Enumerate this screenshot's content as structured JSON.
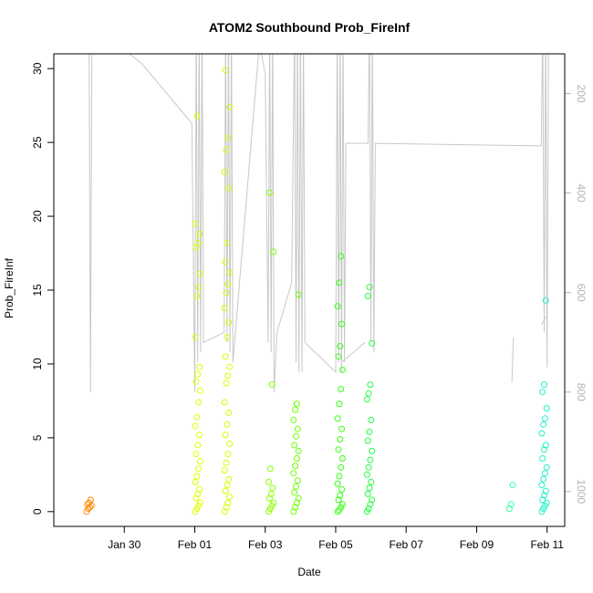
{
  "chart_data": {
    "type": "scatter",
    "title": "ATOM2 Southbound Prob_FireInf",
    "xlabel": "Date",
    "ylabel": "Prob_FireInf",
    "xlim": [
      "2024-01-28T00:00",
      "2024-02-11T12:00"
    ],
    "ylim": [
      -1,
      31
    ],
    "x_ticks": [
      {
        "date": "2024-01-30",
        "label": "Jan 30"
      },
      {
        "date": "2024-02-01",
        "label": "Feb 01"
      },
      {
        "date": "2024-02-03",
        "label": "Feb 03"
      },
      {
        "date": "2024-02-05",
        "label": "Feb 05"
      },
      {
        "date": "2024-02-07",
        "label": "Feb 07"
      },
      {
        "date": "2024-02-09",
        "label": "Feb 09"
      },
      {
        "date": "2024-02-11",
        "label": "Feb 11"
      }
    ],
    "y_ticks": [
      0,
      5,
      10,
      15,
      20,
      25,
      30
    ],
    "right_axis": {
      "ylim": [
        1070,
        120
      ],
      "ticks": [
        200,
        400,
        600,
        800,
        1000
      ],
      "color": "#b3b3b3"
    },
    "grid": false,
    "legend": "none",
    "point_series": [
      {
        "color": "#ff8c00",
        "x": "2024-01-29T00:00",
        "y": [
          0,
          0.2,
          0.3,
          0.4,
          0.5,
          0.6,
          0.8
        ]
      },
      {
        "color": "#e0ff00",
        "x": "2024-02-01T02:00",
        "y": [
          0,
          0.2,
          0.4,
          0.6,
          0.9,
          1.2,
          1.5,
          2.0,
          2.4,
          2.9,
          3.4,
          3.9,
          4.5,
          5.2,
          5.8,
          6.4,
          7.4,
          8.2,
          8.8,
          9.3,
          9.8,
          11.8,
          14.6,
          15.2,
          16.1,
          17.9,
          18.2,
          18.8,
          19.5,
          26.8
        ]
      },
      {
        "color": "#d4ff00",
        "x": "2024-02-01T22:00",
        "y": [
          0,
          0.3,
          0.6,
          1.0,
          1.4,
          1.8,
          2.2,
          2.8,
          3.3,
          3.9,
          4.6,
          5.2,
          5.9,
          6.7,
          7.4,
          8.7,
          9.2,
          9.8,
          10.5,
          11.8,
          12.8,
          13.8,
          14.8,
          15.4,
          16.2,
          16.9,
          18.2,
          21.9,
          23.0,
          24.5,
          25.3,
          27.4,
          29.9
        ]
      },
      {
        "color": "#8cff00",
        "x": "2024-02-03T04:00",
        "y": [
          0,
          0.2,
          0.4,
          0.6,
          0.9,
          1.2,
          1.6,
          2.0,
          2.9,
          8.6,
          17.6,
          21.6
        ]
      },
      {
        "color": "#6eff00",
        "x": "2024-02-03T21:00",
        "y": [
          0,
          0.3,
          0.6,
          0.9,
          1.3,
          1.7,
          2.1,
          2.6,
          3.1,
          3.6,
          4.1,
          4.5,
          5.1,
          5.6,
          6.2,
          6.9,
          7.3,
          14.7
        ]
      },
      {
        "color": "#33ff10",
        "x": "2024-02-05T03:00",
        "y": [
          0,
          0.1,
          0.3,
          0.5,
          0.8,
          1.1,
          1.5,
          1.9,
          2.4,
          3.0,
          3.6,
          4.2,
          4.9,
          5.6,
          6.3,
          7.3,
          8.3,
          9.6,
          10.5,
          11.2,
          12.7,
          13.9,
          15.5,
          17.3
        ]
      },
      {
        "color": "#20ff40",
        "x": "2024-02-05T23:00",
        "y": [
          0,
          0.2,
          0.5,
          0.8,
          1.2,
          1.6,
          2.0,
          2.5,
          3.0,
          3.5,
          4.1,
          4.8,
          5.4,
          6.2,
          7.6,
          8.0,
          8.6,
          11.4,
          14.6,
          15.2
        ]
      },
      {
        "color": "#30ffa0",
        "x": "2024-02-10T00:00",
        "y": [
          0.2,
          0.5,
          1.8
        ]
      },
      {
        "color": "#20f0c8",
        "x": "2024-02-10T22:00",
        "y": [
          0,
          0.2,
          0.4,
          0.6,
          0.8,
          1.1,
          1.4,
          1.8,
          2.2,
          2.6,
          3.0,
          3.6,
          4.2,
          4.5,
          5.3,
          5.9,
          6.3,
          7.0,
          8.1,
          8.6,
          14.3
        ]
      }
    ],
    "depth_line": {
      "color": "#c8c8c8",
      "axis": "right",
      "points": [
        [
          "2024-01-29T00:00",
          60
        ],
        [
          "2024-01-29T01:00",
          800
        ],
        [
          "2024-01-29T02:00",
          60
        ],
        [
          "2024-01-30T12:00",
          140
        ],
        [
          "2024-01-31T22:00",
          260
        ],
        [
          "2024-02-01T00:00",
          800
        ],
        [
          "2024-02-01T01:00",
          60
        ],
        [
          "2024-02-01T02:00",
          740
        ],
        [
          "2024-02-01T03:00",
          60
        ],
        [
          "2024-02-01T04:00",
          720
        ],
        [
          "2024-02-01T05:00",
          60
        ],
        [
          "2024-02-01T06:00",
          700
        ],
        [
          "2024-02-01T20:00",
          680
        ],
        [
          "2024-02-01T21:00",
          60
        ],
        [
          "2024-02-01T22:00",
          700
        ],
        [
          "2024-02-01T23:00",
          60
        ],
        [
          "2024-02-02T00:00",
          720
        ],
        [
          "2024-02-02T01:00",
          60
        ],
        [
          "2024-02-02T02:00",
          740
        ],
        [
          "2024-02-02T20:00",
          100
        ],
        [
          "2024-02-03T00:00",
          160
        ],
        [
          "2024-02-03T02:00",
          700
        ],
        [
          "2024-02-03T03:00",
          60
        ],
        [
          "2024-02-03T04:00",
          720
        ],
        [
          "2024-02-03T05:00",
          60
        ],
        [
          "2024-02-03T06:00",
          800
        ],
        [
          "2024-02-03T08:00",
          680
        ],
        [
          "2024-02-03T18:00",
          580
        ],
        [
          "2024-02-03T20:00",
          60
        ],
        [
          "2024-02-03T21:00",
          740
        ],
        [
          "2024-02-03T22:00",
          60
        ],
        [
          "2024-02-03T23:00",
          760
        ],
        [
          "2024-02-04T00:00",
          60
        ],
        [
          "2024-02-04T01:00",
          760
        ],
        [
          "2024-02-04T02:00",
          60
        ],
        [
          "2024-02-04T03:00",
          700
        ],
        [
          "2024-02-05T00:00",
          760
        ],
        [
          "2024-02-05T01:00",
          60
        ],
        [
          "2024-02-05T02:00",
          740
        ],
        [
          "2024-02-05T03:00",
          60
        ],
        [
          "2024-02-05T04:00",
          760
        ],
        [
          "2024-02-05T05:00",
          60
        ],
        [
          "2024-02-05T06:00",
          740
        ],
        [
          "2024-02-05T07:00",
          300
        ],
        [
          "2024-02-05T22:00",
          300
        ],
        [
          "2024-02-05T23:00",
          60
        ],
        [
          "2024-02-06T00:00",
          700
        ],
        [
          "2024-02-06T01:00",
          60
        ],
        [
          "2024-02-06T02:00",
          720
        ],
        [
          "2024-02-06T03:00",
          300
        ],
        [
          "2024-02-10T20:00",
          305
        ],
        [
          "2024-02-10T21:00",
          60
        ],
        [
          "2024-02-10T22:00",
          680
        ],
        [
          "2024-02-10T23:00",
          60
        ],
        [
          "2024-02-11T00:00",
          750
        ],
        [
          "2024-02-11T01:00",
          60
        ]
      ],
      "segments": [
        [
          [
            "2024-02-05T04:00",
            740
          ],
          [
            "2024-02-05T20:00",
            700
          ]
        ],
        [
          [
            "2024-02-10T00:00",
            780
          ],
          [
            "2024-02-10T01:00",
            690
          ]
        ],
        [
          [
            "2024-02-10T20:00",
            665
          ],
          [
            "2024-02-11T00:00",
            645
          ]
        ]
      ]
    }
  }
}
